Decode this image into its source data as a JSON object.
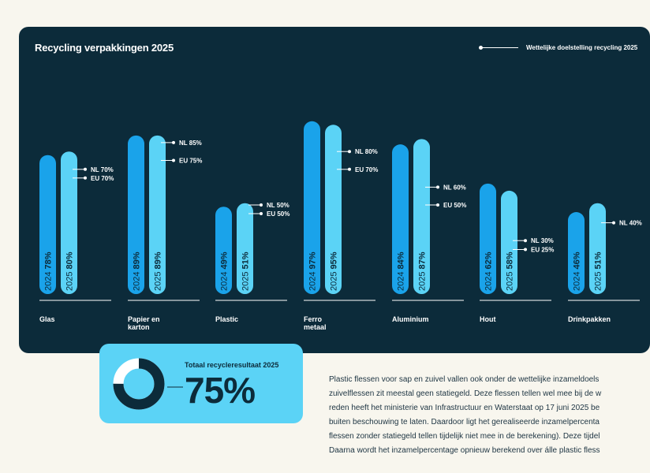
{
  "chart_data": {
    "type": "bar",
    "title": "Recycling verpakkingen 2025",
    "legend": {
      "label": "Wettelijke doelstelling recycling 2025",
      "position": "top-right"
    },
    "categories": [
      "Glas",
      "Papier en karton",
      "Plastic",
      "Ferro metaal",
      "Aluminium",
      "Hout",
      "Drinkpakken"
    ],
    "series": [
      {
        "name": "2024",
        "values": [
          78,
          89,
          49,
          97,
          84,
          62,
          46
        ]
      },
      {
        "name": "2025",
        "values": [
          80,
          89,
          51,
          95,
          87,
          58,
          51
        ]
      }
    ],
    "targets": [
      {
        "nl": "NL 70%",
        "eu": "EU 70%"
      },
      {
        "nl": "NL 85%",
        "eu": "EU 75%"
      },
      {
        "nl": "NL 50%",
        "eu": "EU 50%"
      },
      {
        "nl": "NL 80%",
        "eu": "EU 70%"
      },
      {
        "nl": "NL 60%",
        "eu": "EU 50%"
      },
      {
        "nl": "NL 30%",
        "eu": "EU 25%"
      },
      {
        "nl": "NL 40%",
        "eu": ""
      }
    ],
    "grid": false,
    "colors": {
      "2024": "#1aa3ea",
      "2025": "#5bd3f6",
      "panel": "#0c2b3a"
    }
  },
  "total": {
    "label": "Totaal recycleresultaat 2025",
    "value": "75%",
    "fraction": 0.75,
    "colors": {
      "fill": "#0c2b3a",
      "rest": "#ffffff"
    }
  },
  "body_text": [
    "Plastic flessen voor sap en zuivel vallen ook onder de wettelijke inzameldoels",
    "zuivelflessen zit meestal geen statiegeld. Deze flessen tellen wel mee bij de w",
    "reden heeft het ministerie van Infrastructuur en Waterstaat op 17 juni 2025 be",
    "buiten beschouwing te laten. Daardoor ligt het gerealiseerde inzamelpercenta",
    "flessen zonder statiegeld tellen tijdelijk niet mee in de berekening). Deze tijdel",
    "Daarna wordt het inzamelpercentage opnieuw berekend over álle plastic fless"
  ]
}
